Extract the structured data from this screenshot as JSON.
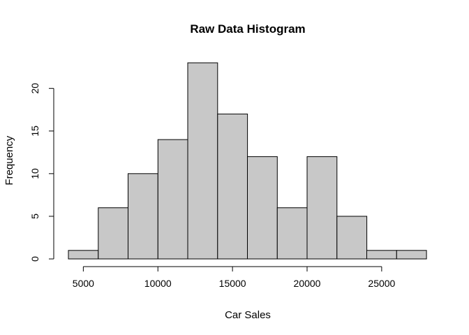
{
  "chart_data": {
    "type": "bar",
    "title": "Raw Data Histogram",
    "xlabel": "Car Sales",
    "ylabel": "Frequency",
    "bins": [
      {
        "start": 4000,
        "end": 6000,
        "count": 1
      },
      {
        "start": 6000,
        "end": 8000,
        "count": 6
      },
      {
        "start": 8000,
        "end": 10000,
        "count": 10
      },
      {
        "start": 10000,
        "end": 12000,
        "count": 14
      },
      {
        "start": 12000,
        "end": 14000,
        "count": 23
      },
      {
        "start": 14000,
        "end": 16000,
        "count": 17
      },
      {
        "start": 16000,
        "end": 18000,
        "count": 12
      },
      {
        "start": 18000,
        "end": 20000,
        "count": 6
      },
      {
        "start": 20000,
        "end": 22000,
        "count": 12
      },
      {
        "start": 22000,
        "end": 24000,
        "count": 5
      },
      {
        "start": 24000,
        "end": 26000,
        "count": 1
      },
      {
        "start": 26000,
        "end": 28000,
        "count": 1
      }
    ],
    "x_ticks": [
      5000,
      10000,
      15000,
      20000,
      25000
    ],
    "x_tick_labels": [
      "5000",
      "10000",
      "15000",
      "20000",
      "25000"
    ],
    "y_ticks": [
      0,
      5,
      10,
      15,
      20
    ],
    "y_tick_labels": [
      "0",
      "5",
      "10",
      "15",
      "20"
    ],
    "xlim": [
      4000,
      28000
    ],
    "ylim": [
      0,
      23
    ],
    "grid": false,
    "legend": "none",
    "colors": {
      "bar_fill": "#c8c8c8",
      "bar_stroke": "#000000"
    }
  }
}
